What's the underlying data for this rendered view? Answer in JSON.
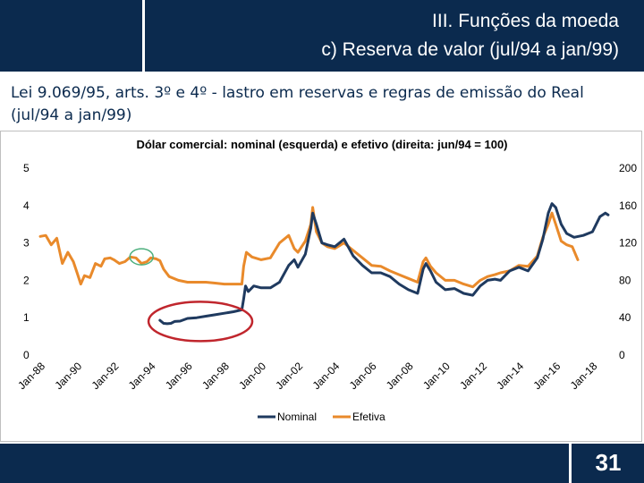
{
  "header": {
    "title_line1": "III. Funções da moeda",
    "title_line2": "c) Reserva de valor (jul/94 a jan/99)"
  },
  "subtitle": "Lei 9.069/95, arts. 3º e 4º - lastro em reservas e regras de emissão do Real (jul/94 a jan/99)",
  "page_number": "31",
  "colors": {
    "nominal": "#1f3a5f",
    "efetivo": "#e98a2b",
    "annotation_red": "#c0262d",
    "annotation_green": "#4caf7d",
    "brand_navy": "#0b2a4e"
  },
  "chart_data": {
    "type": "line",
    "title": "Dólar comercial: nominal (esquerda) e efetivo (direita: jun/94 = 100)",
    "x_tick_labels": [
      "Jan-88",
      "Jan-90",
      "Jan-92",
      "Jan-94",
      "Jan-96",
      "Jan-98",
      "Jan-00",
      "Jan-02",
      "Jan-04",
      "Jan-06",
      "Jan-08",
      "Jan-10",
      "Jan-12",
      "Jan-14",
      "Jan-16",
      "Jan-18"
    ],
    "xlim": [
      1988.0,
      2019.0
    ],
    "y_left": {
      "ticks": [
        "0",
        "1",
        "2",
        "3",
        "4",
        "5"
      ],
      "lim": [
        0,
        5
      ]
    },
    "y_right": {
      "ticks": [
        "0",
        "40",
        "80",
        "120",
        "160",
        "200"
      ],
      "lim": [
        0,
        200
      ]
    },
    "legend_position": "bottom",
    "series": [
      {
        "name": "Nominal",
        "axis": "left",
        "x": [
          1994.5,
          1994.7,
          1994.9,
          1995.1,
          1995.3,
          1995.6,
          1996.0,
          1996.5,
          1997.0,
          1997.5,
          1998.0,
          1998.5,
          1998.95,
          1999.05,
          1999.15,
          1999.3,
          1999.6,
          2000.0,
          2000.5,
          2001.0,
          2001.5,
          2001.8,
          2002.0,
          2002.4,
          2002.7,
          2002.8,
          2003.0,
          2003.3,
          2003.6,
          2004.0,
          2004.5,
          2005.0,
          2005.5,
          2006.0,
          2006.5,
          2007.0,
          2007.5,
          2008.0,
          2008.5,
          2008.8,
          2008.95,
          2009.2,
          2009.5,
          2010.0,
          2010.5,
          2011.0,
          2011.5,
          2011.9,
          2012.3,
          2012.7,
          2013.0,
          2013.5,
          2014.0,
          2014.5,
          2015.0,
          2015.3,
          2015.6,
          2015.8,
          2016.0,
          2016.3,
          2016.6,
          2017.0,
          2017.5,
          2018.0,
          2018.4,
          2018.7,
          2018.85
        ],
        "y": [
          0.93,
          0.85,
          0.84,
          0.85,
          0.9,
          0.91,
          0.98,
          1.0,
          1.04,
          1.08,
          1.12,
          1.16,
          1.21,
          1.5,
          1.85,
          1.7,
          1.85,
          1.8,
          1.8,
          1.95,
          2.4,
          2.55,
          2.35,
          2.7,
          3.4,
          3.8,
          3.5,
          3.0,
          2.95,
          2.9,
          3.1,
          2.65,
          2.4,
          2.2,
          2.2,
          2.1,
          1.9,
          1.75,
          1.65,
          2.3,
          2.45,
          2.25,
          1.95,
          1.75,
          1.78,
          1.65,
          1.6,
          1.85,
          2.0,
          2.03,
          2.0,
          2.25,
          2.35,
          2.25,
          2.6,
          3.1,
          3.8,
          4.05,
          3.95,
          3.5,
          3.25,
          3.15,
          3.2,
          3.3,
          3.7,
          3.8,
          3.75
        ]
      },
      {
        "name": "Efetiva",
        "axis": "right",
        "x": [
          1988.0,
          1988.3,
          1988.6,
          1988.9,
          1989.2,
          1989.5,
          1989.8,
          1990.0,
          1990.2,
          1990.4,
          1990.7,
          1991.0,
          1991.3,
          1991.5,
          1991.8,
          1992.0,
          1992.3,
          1992.6,
          1992.9,
          1993.2,
          1993.5,
          1993.8,
          1994.0,
          1994.3,
          1994.5,
          1994.7,
          1995.0,
          1995.5,
          1996.0,
          1996.5,
          1997.0,
          1997.5,
          1998.0,
          1998.5,
          1998.95,
          1999.05,
          1999.2,
          1999.5,
          2000.0,
          2000.5,
          2001.0,
          2001.5,
          2001.8,
          2002.0,
          2002.4,
          2002.7,
          2002.8,
          2003.0,
          2003.3,
          2003.6,
          2004.0,
          2004.5,
          2005.0,
          2005.5,
          2006.0,
          2006.5,
          2007.0,
          2007.5,
          2008.0,
          2008.5,
          2008.8,
          2008.95,
          2009.2,
          2009.5,
          2010.0,
          2010.5,
          2011.0,
          2011.5,
          2011.9,
          2012.3,
          2012.7,
          2013.0,
          2013.5,
          2014.0,
          2014.5,
          2015.0,
          2015.3,
          2015.6,
          2015.8,
          2016.0,
          2016.3,
          2016.6,
          2016.9,
          2017.2
        ],
        "y": [
          127,
          128,
          118,
          125,
          98,
          110,
          100,
          88,
          76,
          85,
          83,
          98,
          95,
          103,
          104,
          102,
          98,
          100,
          105,
          104,
          98,
          100,
          104,
          103,
          101,
          92,
          84,
          80,
          78,
          78,
          78,
          77,
          76,
          76,
          76,
          95,
          110,
          105,
          102,
          104,
          120,
          128,
          114,
          110,
          122,
          140,
          158,
          132,
          120,
          116,
          114,
          120,
          112,
          104,
          96,
          95,
          90,
          86,
          82,
          78,
          100,
          104,
          95,
          88,
          80,
          80,
          76,
          73,
          80,
          84,
          86,
          88,
          90,
          96,
          95,
          106,
          126,
          140,
          152,
          140,
          122,
          118,
          116,
          102
        ]
      }
    ],
    "annotations": [
      {
        "shape": "ellipse",
        "color": "red",
        "center": [
          1996.7,
          0.9
        ],
        "note": ""
      },
      {
        "shape": "ellipse",
        "color": "green",
        "center": [
          1993.5,
          2.63
        ],
        "note": ""
      }
    ]
  }
}
